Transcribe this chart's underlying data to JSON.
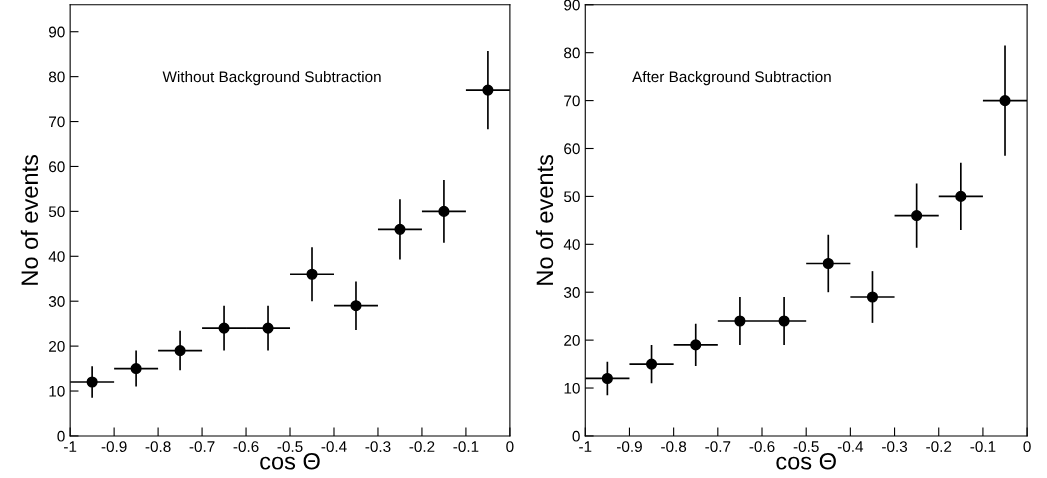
{
  "chart_data": [
    {
      "type": "scatter",
      "xlabel": "cos Θ",
      "ylabel": "No of events",
      "annotations": [
        "Without Background Subtraction"
      ],
      "x": [
        -0.95,
        -0.85,
        -0.75,
        -0.65,
        -0.55,
        -0.45,
        -0.35,
        -0.25,
        -0.15,
        -0.05
      ],
      "series": [
        {
          "color": "#000000",
          "values": [
            12,
            15,
            19,
            24,
            24,
            36,
            29,
            46,
            50,
            77
          ],
          "errors": [
            3.5,
            4,
            4.4,
            5,
            5,
            6,
            5.4,
            6.7,
            7,
            8.7
          ],
          "xerrors": [
            0.05,
            0.05,
            0.05,
            0.05,
            0.05,
            0.05,
            0.05,
            0.05,
            0.05,
            0.05
          ]
        }
      ],
      "xlim": [
        -1,
        0
      ],
      "xticks": [
        -1,
        -0.9,
        -0.8,
        -0.7,
        -0.6,
        -0.5,
        -0.4,
        -0.3,
        -0.2,
        -0.1,
        0
      ],
      "ylim": [
        0,
        96
      ],
      "yticks": [
        0,
        10,
        20,
        30,
        40,
        50,
        60,
        70,
        80,
        90
      ],
      "marker": "circle",
      "grid": false,
      "legend": false
    },
    {
      "type": "scatter",
      "xlabel": "cos Θ",
      "ylabel": "No of events",
      "annotations": [
        "After Background Subtraction"
      ],
      "x": [
        -0.95,
        -0.85,
        -0.75,
        -0.65,
        -0.55,
        -0.45,
        -0.35,
        -0.25,
        -0.15,
        -0.05
      ],
      "series": [
        {
          "color": "#000000",
          "values": [
            12,
            15,
            19,
            24,
            24,
            36,
            29,
            46,
            50,
            70
          ],
          "errors": [
            3.5,
            4,
            4.4,
            5,
            5,
            6,
            5.4,
            6.7,
            7,
            11.5
          ],
          "xerrors": [
            0.05,
            0.05,
            0.05,
            0.05,
            0.05,
            0.05,
            0.05,
            0.05,
            0.05,
            0.05
          ]
        }
      ],
      "xlim": [
        -1,
        0
      ],
      "xticks": [
        -1,
        -0.9,
        -0.8,
        -0.7,
        -0.6,
        -0.5,
        -0.4,
        -0.3,
        -0.2,
        -0.1,
        0
      ],
      "ylim": [
        0,
        90
      ],
      "yticks": [
        0,
        10,
        20,
        30,
        40,
        50,
        60,
        70,
        80,
        90
      ],
      "marker": "circle",
      "grid": false,
      "legend": false
    }
  ]
}
